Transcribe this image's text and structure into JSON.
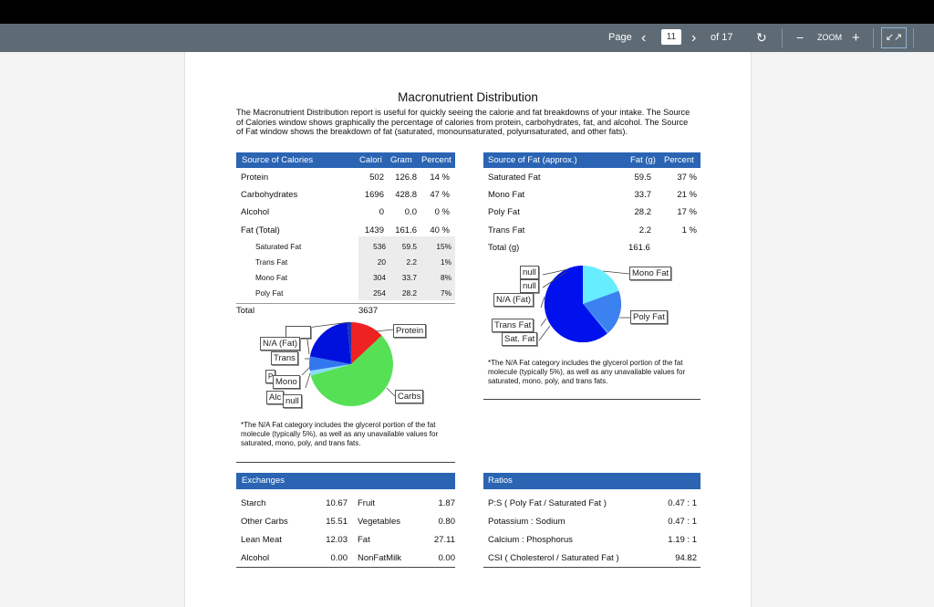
{
  "toolbar": {
    "page_label": "Page",
    "page_current": "11",
    "page_total": "of 17",
    "zoom_label": "ZOOM"
  },
  "doc": {
    "title": "Macronutrient Distribution",
    "intro": "The Macronutrient Distribution report is useful for quickly seeing the calorie and fat breakdowns of your intake. The Source of Calories window shows graphically the percentage of calories from protein, carbohydrates, fat, and alcohol. The Source of Fat window shows the breakdown of fat (saturated, monounsaturated, polyunsaturated, and other fats).",
    "calories": {
      "headers": [
        "Source of Calories",
        "Calori",
        "Gram",
        "Percent"
      ],
      "rows": [
        {
          "name": "Protein",
          "cal": "502",
          "gram": "126.8",
          "pct": "14 %"
        },
        {
          "name": "Carbohydrates",
          "cal": "1696",
          "gram": "428.8",
          "pct": "47 %"
        },
        {
          "name": "Alcohol",
          "cal": "0",
          "gram": "0.0",
          "pct": "0 %"
        },
        {
          "name": "Fat (Total)",
          "cal": "1439",
          "gram": "161.6",
          "pct": "40 %"
        }
      ],
      "subrows": [
        {
          "name": "Saturated Fat",
          "cal": "536",
          "gram": "59.5",
          "pct": "15%"
        },
        {
          "name": "Trans Fat",
          "cal": "20",
          "gram": "2.2",
          "pct": "1%"
        },
        {
          "name": "Mono Fat",
          "cal": "304",
          "gram": "33.7",
          "pct": "8%"
        },
        {
          "name": "Poly Fat",
          "cal": "254",
          "gram": "28.2",
          "pct": "7%"
        }
      ],
      "total_label": "Total",
      "total_value": "3637",
      "pie_labels": {
        "protein": "Protein",
        "carbs": "Carbs",
        "na_fat": "N/A (Fat)",
        "trans": "Trans",
        "poly": "P",
        "mono": "Mono",
        "alc": "Alc",
        "null": "null"
      },
      "note": "*The N/A Fat category includes the glycerol portion of the fat molecule (typically 5%), as well as any unavailable values for saturated, mono, poly, and trans fats."
    },
    "fat": {
      "headers": [
        "Source of Fat (approx.)",
        "Fat (g)",
        "Percent"
      ],
      "rows": [
        {
          "name": "Saturated Fat",
          "g": "59.5",
          "pct": "37 %"
        },
        {
          "name": "Mono Fat",
          "g": "33.7",
          "pct": "21 %"
        },
        {
          "name": "Poly Fat",
          "g": "28.2",
          "pct": "17 %"
        },
        {
          "name": "Trans Fat",
          "g": "2.2",
          "pct": "1 %"
        }
      ],
      "total_label": "Total (g)",
      "total_value": "161.6",
      "pie_labels": {
        "null1": "null",
        "null2": "null",
        "na_fat": "N/A (Fat)",
        "trans": "Trans Fat",
        "sat": "Sat. Fat",
        "mono": "Mono Fat",
        "poly": "Poly Fat"
      },
      "note": "*The N/A Fat category includes the glycerol portion of the glycerol portion of the fat molecule (typically 5%), as well as any unavailable values for saturated, mono, poly, and trans fats."
    },
    "exchanges": {
      "header": "Exchanges",
      "rows": [
        {
          "a": "Starch",
          "av": "10.67",
          "b": "Fruit",
          "bv": "1.87"
        },
        {
          "a": "Other Carbs",
          "av": "15.51",
          "b": "Vegetables",
          "bv": "0.80"
        },
        {
          "a": "Lean Meat",
          "av": "12.03",
          "b": "Fat",
          "bv": "27.11"
        },
        {
          "a": "Alcohol",
          "av": "0.00",
          "b": "NonFatMilk",
          "bv": "0.00"
        }
      ]
    },
    "ratios": {
      "header": "Ratios",
      "rows": [
        {
          "name": "P:S ( Poly Fat / Saturated Fat )",
          "value": "0.47 : 1"
        },
        {
          "name": "Potassium : Sodium",
          "value": "0.47 : 1"
        },
        {
          "name": "Calcium : Phosphorus",
          "value": "1.19 : 1"
        },
        {
          "name": "CSI ( Cholesterol / Saturated Fat )",
          "value": "94.82"
        }
      ]
    }
  }
}
